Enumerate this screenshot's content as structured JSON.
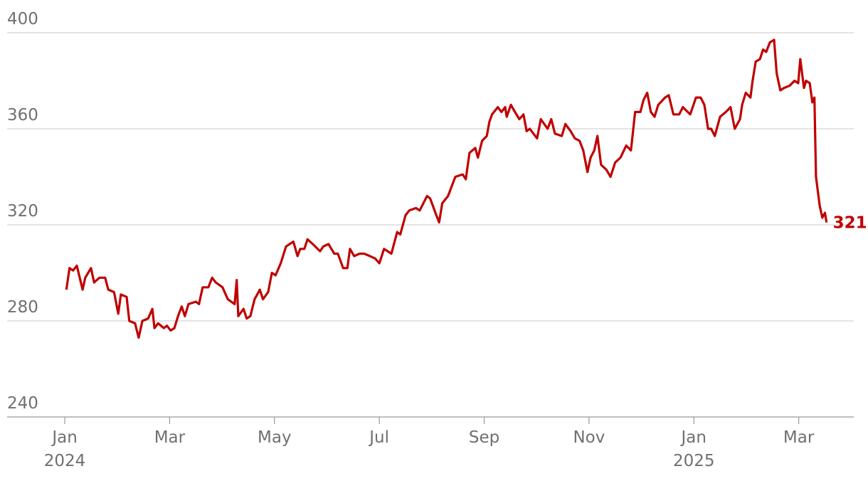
{
  "chart_data": {
    "type": "line",
    "color": "#c00000",
    "xlim": [
      -1.1,
      15.05
    ],
    "ylim": [
      240,
      400
    ],
    "yticks": [
      240,
      280,
      320,
      360,
      400
    ],
    "xticks": [
      {
        "value": 0,
        "label": "Jan"
      },
      {
        "value": 2,
        "label": "Mar"
      },
      {
        "value": 4,
        "label": "May"
      },
      {
        "value": 6,
        "label": "Jul"
      },
      {
        "value": 8,
        "label": "Sep"
      },
      {
        "value": 10,
        "label": "Nov"
      },
      {
        "value": 12,
        "label": "Jan"
      },
      {
        "value": 14,
        "label": "Mar"
      }
    ],
    "xtick_years": [
      {
        "value": 0,
        "label": "2024"
      },
      {
        "value": 12,
        "label": "2025"
      }
    ],
    "grid": true,
    "x": [
      0.03,
      0.09,
      0.16,
      0.23,
      0.34,
      0.39,
      0.5,
      0.56,
      0.66,
      0.77,
      0.83,
      0.94,
      1.02,
      1.07,
      1.18,
      1.23,
      1.34,
      1.41,
      1.48,
      1.59,
      1.67,
      1.71,
      1.78,
      1.89,
      1.95,
      2.02,
      2.09,
      2.16,
      2.23,
      2.29,
      2.36,
      2.5,
      2.56,
      2.63,
      2.74,
      2.81,
      2.88,
      3.01,
      3.11,
      3.24,
      3.28,
      3.31,
      3.41,
      3.47,
      3.54,
      3.62,
      3.72,
      3.78,
      3.88,
      3.95,
      4.02,
      4.12,
      4.22,
      4.36,
      4.44,
      4.49,
      4.57,
      4.63,
      4.73,
      4.87,
      4.93,
      5.03,
      5.14,
      5.21,
      5.31,
      5.39,
      5.44,
      5.52,
      5.62,
      5.71,
      5.82,
      5.92,
      6.0,
      6.09,
      6.23,
      6.34,
      6.4,
      6.5,
      6.57,
      6.7,
      6.77,
      6.91,
      6.97,
      7.07,
      7.14,
      7.2,
      7.31,
      7.38,
      7.45,
      7.59,
      7.65,
      7.72,
      7.83,
      7.88,
      7.96,
      8.05,
      8.1,
      8.15,
      8.26,
      8.33,
      8.4,
      8.43,
      8.51,
      8.56,
      8.67,
      8.75,
      8.81,
      8.87,
      8.94,
      9.01,
      9.08,
      9.21,
      9.28,
      9.35,
      9.48,
      9.55,
      9.65,
      9.73,
      9.82,
      9.89,
      9.97,
      10.03,
      10.1,
      10.16,
      10.23,
      10.33,
      10.41,
      10.5,
      10.6,
      10.71,
      10.8,
      10.88,
      10.98,
      11.04,
      11.11,
      11.18,
      11.25,
      11.32,
      11.45,
      11.52,
      11.61,
      11.72,
      11.79,
      11.93,
      12.04,
      12.13,
      12.2,
      12.27,
      12.33,
      12.4,
      12.5,
      12.61,
      12.7,
      12.78,
      12.88,
      12.92,
      12.99,
      13.08,
      13.12,
      13.18,
      13.26,
      13.32,
      13.38,
      13.45,
      13.53,
      13.58,
      13.65,
      13.72,
      13.83,
      13.92,
      13.99,
      14.03,
      14.1,
      14.14,
      14.21,
      14.26,
      14.3,
      14.33,
      14.4,
      14.45,
      14.5,
      14.53
    ],
    "values": [
      293,
      302,
      301,
      303,
      293,
      298,
      302,
      296,
      298,
      298,
      293,
      292,
      283,
      291,
      290,
      280,
      279,
      273,
      280,
      281,
      285,
      277,
      279,
      277,
      278,
      276,
      277,
      282,
      286,
      282,
      287,
      288,
      287,
      294,
      294,
      298,
      296,
      294,
      289,
      287,
      297,
      282,
      285,
      281,
      282,
      289,
      293,
      289,
      292,
      300,
      299,
      304,
      311,
      313,
      307,
      310,
      310,
      314,
      312,
      309,
      311,
      312,
      308,
      308,
      302,
      302,
      310,
      307,
      308,
      308,
      307,
      306,
      304,
      310,
      308,
      317,
      316,
      324,
      326,
      327,
      326,
      332,
      331,
      325,
      321,
      329,
      332,
      336,
      340,
      341,
      339,
      350,
      352,
      348,
      355,
      357,
      363,
      366,
      369,
      367,
      369,
      365,
      370,
      368,
      364,
      366,
      359,
      360,
      358,
      356,
      364,
      360,
      364,
      358,
      357,
      362,
      359,
      356,
      355,
      351,
      342,
      348,
      351,
      357,
      345,
      343,
      340,
      346,
      348,
      353,
      351,
      367,
      367,
      372,
      375,
      367,
      365,
      370,
      373,
      374,
      366,
      366,
      369,
      366,
      373,
      373,
      370,
      360,
      360,
      357,
      365,
      367,
      369,
      360,
      364,
      370,
      375,
      373,
      380,
      388,
      389,
      393,
      392,
      396,
      397,
      383,
      376,
      377,
      378,
      380,
      379,
      389,
      377,
      380,
      379,
      371,
      373,
      340,
      328,
      323,
      325,
      321
    ]
  }
}
